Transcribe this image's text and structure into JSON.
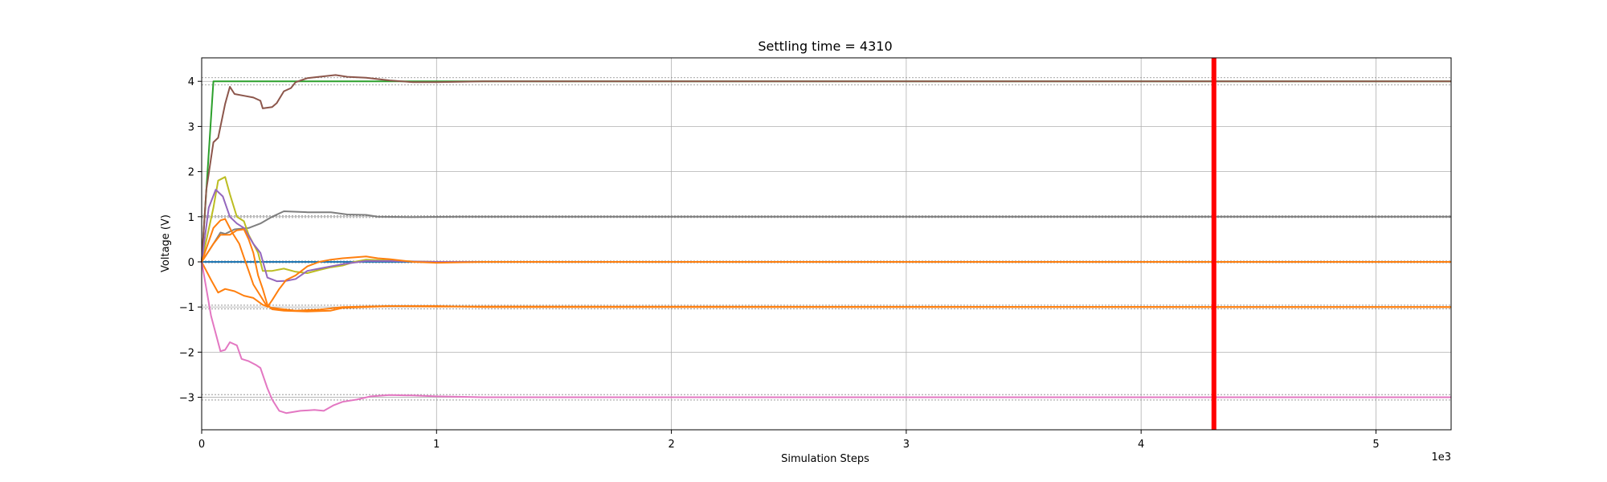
{
  "chart_data": {
    "type": "line",
    "title": "Settling time = 4310",
    "xlabel": "Simulation Steps",
    "ylabel": "Voltage (V)",
    "x_offset_label": "1e3",
    "xlim": [
      0,
      5.32
    ],
    "ylim": [
      -3.72,
      4.52
    ],
    "xticks": [
      0,
      1,
      2,
      3,
      4,
      5
    ],
    "xtick_labels": [
      "0",
      "1",
      "2",
      "3",
      "4",
      "5"
    ],
    "yticks": [
      -3,
      -2,
      -1,
      0,
      1,
      2,
      3,
      4
    ],
    "ytick_labels": [
      "−3",
      "−2",
      "−1",
      "0",
      "1",
      "2",
      "3",
      "4"
    ],
    "grid": true,
    "settling_time": 4.31,
    "settling_marker_color": "#ff0000",
    "tolerance_bands": [
      {
        "target": 4,
        "lower": 3.92,
        "upper": 4.08
      },
      {
        "target": 1,
        "lower": 0.98,
        "upper": 1.02
      },
      {
        "target": 0,
        "lower": -0.02,
        "upper": 0.02
      },
      {
        "target": -1,
        "lower": -1.04,
        "upper": -0.96
      },
      {
        "target": -3,
        "lower": -3.06,
        "upper": -2.94
      }
    ],
    "series": [
      {
        "color": "#1f77b4",
        "points": [
          [
            0,
            0
          ],
          [
            0.1,
            0
          ],
          [
            1,
            0
          ],
          [
            5.32,
            0
          ]
        ]
      },
      {
        "color": "#2ca02c",
        "points": [
          [
            0,
            0
          ],
          [
            0.05,
            4
          ],
          [
            0.3,
            4
          ],
          [
            1,
            4
          ],
          [
            5.32,
            4
          ]
        ]
      },
      {
        "color": "#8c564b",
        "points": [
          [
            0,
            0
          ],
          [
            0.02,
            1.6
          ],
          [
            0.05,
            2.65
          ],
          [
            0.07,
            2.75
          ],
          [
            0.1,
            3.5
          ],
          [
            0.12,
            3.88
          ],
          [
            0.14,
            3.72
          ],
          [
            0.18,
            3.68
          ],
          [
            0.22,
            3.64
          ],
          [
            0.25,
            3.57
          ],
          [
            0.26,
            3.4
          ],
          [
            0.3,
            3.43
          ],
          [
            0.32,
            3.52
          ],
          [
            0.35,
            3.78
          ],
          [
            0.38,
            3.85
          ],
          [
            0.4,
            3.98
          ],
          [
            0.45,
            4.07
          ],
          [
            0.5,
            4.1
          ],
          [
            0.57,
            4.14
          ],
          [
            0.62,
            4.1
          ],
          [
            0.7,
            4.08
          ],
          [
            0.8,
            4.02
          ],
          [
            0.9,
            3.98
          ],
          [
            1.0,
            3.98
          ],
          [
            1.2,
            4
          ],
          [
            5.32,
            4
          ]
        ]
      },
      {
        "color": "#7f7f7f",
        "points": [
          [
            0,
            0
          ],
          [
            0.05,
            0.4
          ],
          [
            0.08,
            0.65
          ],
          [
            0.1,
            0.62
          ],
          [
            0.14,
            0.72
          ],
          [
            0.2,
            0.75
          ],
          [
            0.25,
            0.85
          ],
          [
            0.3,
            1.0
          ],
          [
            0.35,
            1.12
          ],
          [
            0.45,
            1.1
          ],
          [
            0.55,
            1.1
          ],
          [
            0.62,
            1.05
          ],
          [
            0.7,
            1.04
          ],
          [
            0.75,
            1.0
          ],
          [
            0.9,
            0.99
          ],
          [
            1.1,
            1.0
          ],
          [
            5.32,
            1.0
          ]
        ]
      },
      {
        "color": "#bcbd22",
        "points": [
          [
            0,
            0
          ],
          [
            0.05,
            1.2
          ],
          [
            0.07,
            1.8
          ],
          [
            0.1,
            1.88
          ],
          [
            0.12,
            1.5
          ],
          [
            0.15,
            1.0
          ],
          [
            0.18,
            0.9
          ],
          [
            0.2,
            0.6
          ],
          [
            0.24,
            0.2
          ],
          [
            0.26,
            -0.2
          ],
          [
            0.3,
            -0.2
          ],
          [
            0.35,
            -0.15
          ],
          [
            0.4,
            -0.22
          ],
          [
            0.45,
            -0.25
          ],
          [
            0.5,
            -0.18
          ],
          [
            0.55,
            -0.12
          ],
          [
            0.6,
            -0.08
          ],
          [
            0.65,
            0.0
          ],
          [
            0.7,
            0.05
          ],
          [
            0.8,
            0.03
          ],
          [
            0.9,
            0.01
          ],
          [
            1,
            0
          ],
          [
            5.32,
            0
          ]
        ]
      },
      {
        "color": "#9467bd",
        "points": [
          [
            0,
            0
          ],
          [
            0.03,
            1.2
          ],
          [
            0.06,
            1.6
          ],
          [
            0.09,
            1.45
          ],
          [
            0.12,
            1.0
          ],
          [
            0.15,
            0.85
          ],
          [
            0.18,
            0.75
          ],
          [
            0.22,
            0.4
          ],
          [
            0.25,
            0.2
          ],
          [
            0.28,
            -0.35
          ],
          [
            0.32,
            -0.43
          ],
          [
            0.36,
            -0.42
          ],
          [
            0.4,
            -0.38
          ],
          [
            0.45,
            -0.2
          ],
          [
            0.5,
            -0.15
          ],
          [
            0.55,
            -0.1
          ],
          [
            0.6,
            -0.05
          ],
          [
            0.7,
            0.02
          ],
          [
            0.8,
            0.02
          ],
          [
            1,
            0
          ],
          [
            5.32,
            0
          ]
        ]
      },
      {
        "color": "#ff7f0e",
        "points": [
          [
            0,
            0
          ],
          [
            0.05,
            0.75
          ],
          [
            0.08,
            0.92
          ],
          [
            0.1,
            0.95
          ],
          [
            0.13,
            0.65
          ],
          [
            0.16,
            0.4
          ],
          [
            0.18,
            0.1
          ],
          [
            0.2,
            -0.2
          ],
          [
            0.22,
            -0.5
          ],
          [
            0.25,
            -0.75
          ],
          [
            0.28,
            -1.0
          ],
          [
            0.3,
            -0.85
          ],
          [
            0.33,
            -0.6
          ],
          [
            0.36,
            -0.4
          ],
          [
            0.4,
            -0.3
          ],
          [
            0.45,
            -0.1
          ],
          [
            0.5,
            0.0
          ],
          [
            0.55,
            0.05
          ],
          [
            0.6,
            0.08
          ],
          [
            0.65,
            0.1
          ],
          [
            0.7,
            0.12
          ],
          [
            0.75,
            0.08
          ],
          [
            0.8,
            0.06
          ],
          [
            0.9,
            0.0
          ],
          [
            1.0,
            -0.02
          ],
          [
            1.2,
            0
          ],
          [
            5.32,
            0
          ]
        ]
      },
      {
        "color": "#ff7f0e",
        "points": [
          [
            0,
            0
          ],
          [
            0.05,
            0.4
          ],
          [
            0.08,
            0.6
          ],
          [
            0.12,
            0.6
          ],
          [
            0.15,
            0.7
          ],
          [
            0.18,
            0.72
          ],
          [
            0.2,
            0.5
          ],
          [
            0.22,
            0.2
          ],
          [
            0.24,
            -0.3
          ],
          [
            0.26,
            -0.6
          ],
          [
            0.28,
            -0.95
          ],
          [
            0.3,
            -1.05
          ],
          [
            0.35,
            -1.08
          ],
          [
            0.45,
            -1.1
          ],
          [
            0.55,
            -1.08
          ],
          [
            0.6,
            -1.02
          ],
          [
            0.7,
            -1.0
          ],
          [
            0.8,
            -0.98
          ],
          [
            1.0,
            -0.98
          ],
          [
            1.2,
            -1.0
          ],
          [
            5.32,
            -1.0
          ]
        ]
      },
      {
        "color": "#ff7f0e",
        "points": [
          [
            0,
            0
          ],
          [
            0.04,
            -0.4
          ],
          [
            0.07,
            -0.68
          ],
          [
            0.1,
            -0.6
          ],
          [
            0.14,
            -0.65
          ],
          [
            0.18,
            -0.75
          ],
          [
            0.22,
            -0.8
          ],
          [
            0.26,
            -0.95
          ],
          [
            0.3,
            -1.02
          ],
          [
            0.4,
            -1.08
          ],
          [
            0.5,
            -1.06
          ],
          [
            0.6,
            -1.0
          ],
          [
            0.8,
            -0.98
          ],
          [
            1.0,
            -0.99
          ],
          [
            5.32,
            -1.0
          ]
        ]
      },
      {
        "color": "#e377c2",
        "points": [
          [
            0,
            0
          ],
          [
            0.04,
            -1.2
          ],
          [
            0.08,
            -1.98
          ],
          [
            0.1,
            -1.95
          ],
          [
            0.12,
            -1.78
          ],
          [
            0.15,
            -1.85
          ],
          [
            0.17,
            -2.15
          ],
          [
            0.2,
            -2.2
          ],
          [
            0.23,
            -2.28
          ],
          [
            0.25,
            -2.35
          ],
          [
            0.28,
            -2.8
          ],
          [
            0.3,
            -3.05
          ],
          [
            0.33,
            -3.3
          ],
          [
            0.36,
            -3.35
          ],
          [
            0.42,
            -3.3
          ],
          [
            0.48,
            -3.28
          ],
          [
            0.52,
            -3.3
          ],
          [
            0.56,
            -3.18
          ],
          [
            0.6,
            -3.1
          ],
          [
            0.66,
            -3.05
          ],
          [
            0.72,
            -2.98
          ],
          [
            0.8,
            -2.95
          ],
          [
            0.9,
            -2.96
          ],
          [
            1.0,
            -2.98
          ],
          [
            1.2,
            -3.0
          ],
          [
            5.32,
            -3.0
          ]
        ]
      }
    ]
  }
}
